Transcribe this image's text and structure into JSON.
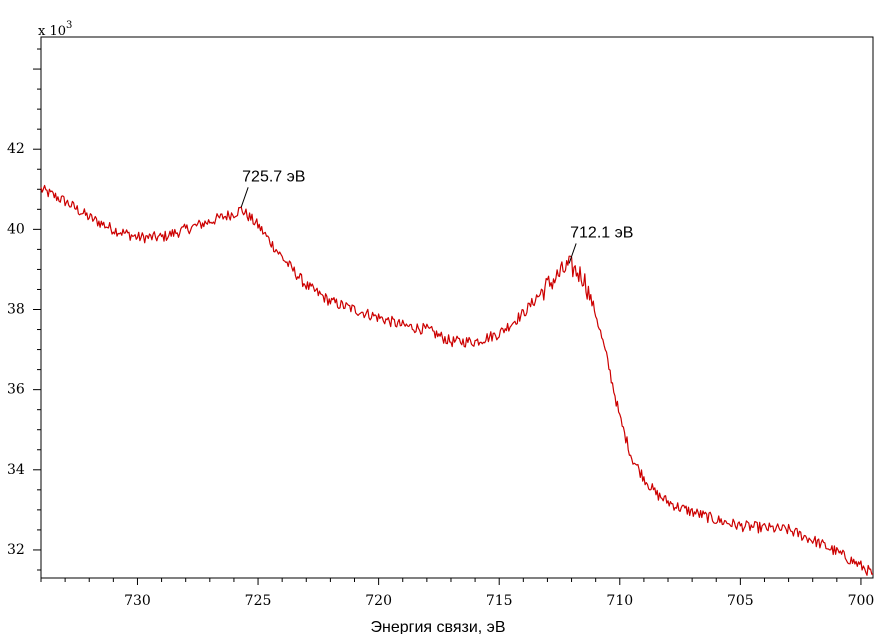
{
  "chart_data": {
    "type": "line",
    "title": "",
    "xlabel": "Энергия связи, эВ",
    "ylabel": "",
    "y_scale_label": "x 10",
    "y_scale_exponent": "3",
    "xlim": [
      734,
      699.5
    ],
    "x_reversed": true,
    "ylim": [
      31.3,
      44.8
    ],
    "x_ticks": [
      730,
      725,
      720,
      715,
      710,
      705,
      700
    ],
    "x_tick_labels": [
      "730",
      "725",
      "720",
      "715",
      "710",
      "705",
      "700"
    ],
    "y_ticks": [
      32,
      34,
      36,
      38,
      40,
      42
    ],
    "y_tick_labels": [
      "32",
      "34",
      "36",
      "38",
      "40",
      "42"
    ],
    "grid": false,
    "line_color": "#cc0000",
    "series": [
      {
        "x": [
          734,
          733,
          732,
          731,
          730,
          729,
          728,
          727,
          726,
          725.7,
          725,
          724,
          723,
          722,
          721,
          720,
          719,
          718,
          717,
          716,
          715,
          714,
          713,
          712.1,
          711.5,
          711,
          710.5,
          710,
          709.5,
          709,
          708.5,
          708,
          707.5,
          707,
          706,
          705,
          704,
          703,
          702,
          701,
          700,
          699.5
        ],
        "values": [
          41.0,
          40.7,
          40.3,
          40.0,
          39.8,
          39.8,
          40.0,
          40.2,
          40.4,
          40.5,
          40.1,
          39.3,
          38.6,
          38.2,
          38.0,
          37.8,
          37.6,
          37.5,
          37.2,
          37.2,
          37.4,
          37.9,
          38.6,
          39.1,
          38.8,
          37.9,
          36.7,
          35.3,
          34.3,
          33.8,
          33.4,
          33.2,
          33.05,
          32.95,
          32.75,
          32.6,
          32.55,
          32.5,
          32.25,
          31.95,
          31.6,
          31.4
        ]
      }
    ],
    "annotations": [
      {
        "text": "725.7 эВ",
        "x": 725.7,
        "y": 40.5
      },
      {
        "text": "712.1 эВ",
        "x": 712.1,
        "y": 39.1
      }
    ]
  }
}
